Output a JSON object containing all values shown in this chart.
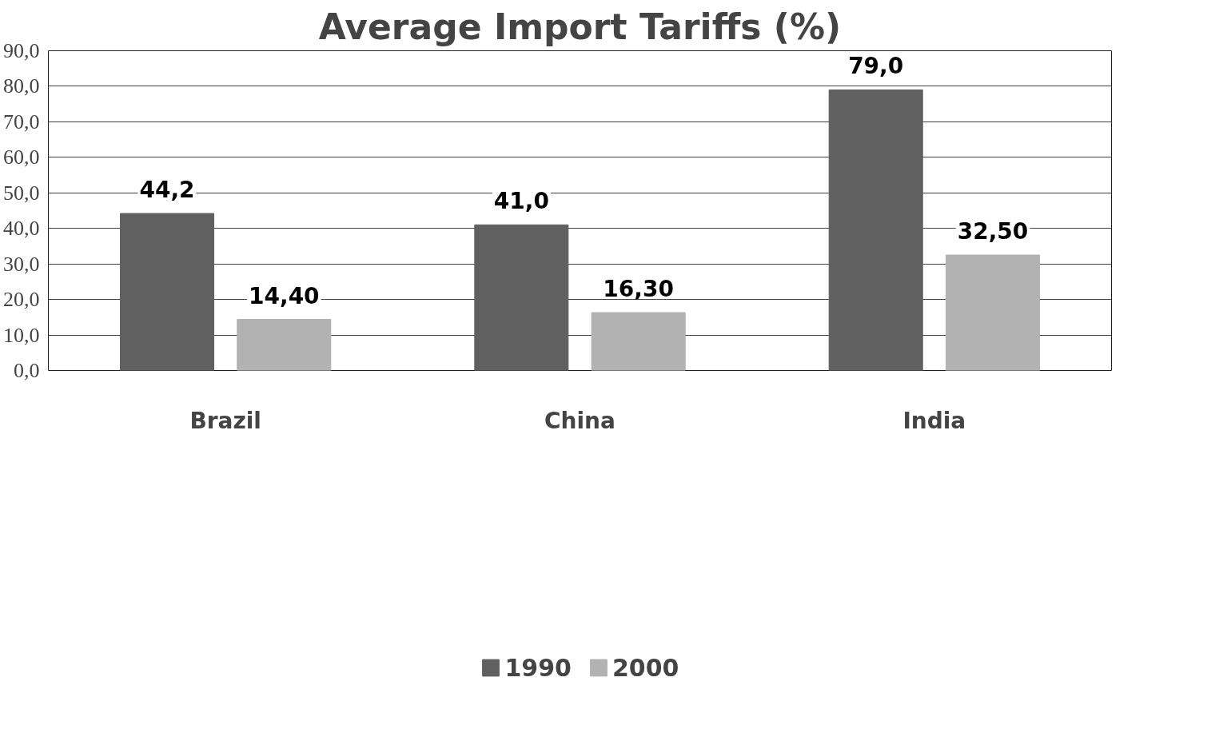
{
  "chart_data": {
    "type": "bar",
    "title": "Average Import Tariffs (%)",
    "categories": [
      "Brazil",
      "China",
      "India"
    ],
    "series": [
      {
        "name": "1990",
        "color": "#606060",
        "values": [
          44.2,
          41.0,
          79.0
        ],
        "value_labels": [
          "44,2",
          "41,0",
          "79,0"
        ]
      },
      {
        "name": "2000",
        "color": "#b2b2b2",
        "values": [
          14.4,
          16.3,
          32.5
        ],
        "value_labels": [
          "14,40",
          "16,30",
          "32,50"
        ]
      }
    ],
    "ylim": [
      0,
      90
    ],
    "yticks": [
      {
        "value": 0,
        "label": "0,0"
      },
      {
        "value": 10,
        "label": "10,0"
      },
      {
        "value": 20,
        "label": "20,0"
      },
      {
        "value": 30,
        "label": "30,0"
      },
      {
        "value": 40,
        "label": "40,0"
      },
      {
        "value": 50,
        "label": "50,0"
      },
      {
        "value": 60,
        "label": "60,0"
      },
      {
        "value": 70,
        "label": "70,0"
      },
      {
        "value": 80,
        "label": "80,0"
      },
      {
        "value": 90,
        "label": "90,0"
      }
    ],
    "grid": "y",
    "legend": "bottom"
  }
}
